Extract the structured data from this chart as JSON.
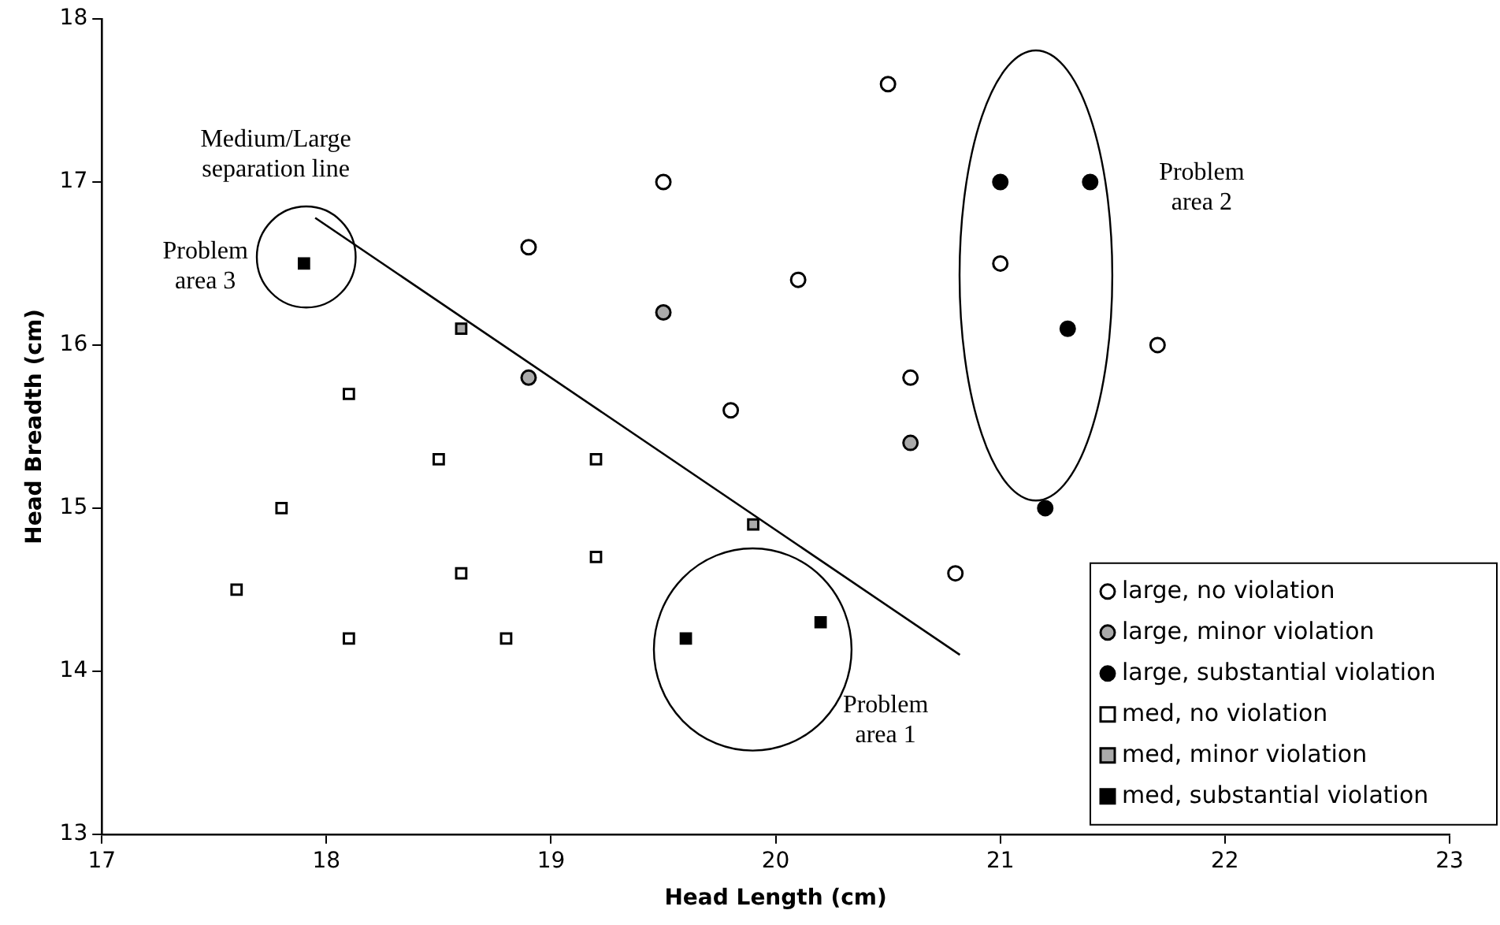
{
  "chart_data": {
    "type": "scatter",
    "xlabel": "Head Length (cm)",
    "ylabel": "Head Breadth (cm)",
    "xlim": [
      17,
      23
    ],
    "xticks": [
      17,
      18,
      19,
      20,
      21,
      22,
      23
    ],
    "ylim": [
      13,
      18
    ],
    "yticks": [
      13,
      14,
      15,
      16,
      17,
      18
    ],
    "grid": false,
    "legend": "bottom right",
    "series": [
      {
        "name": "large, no violation",
        "marker": "circle",
        "color": "#ffffff",
        "x": [
          18.9,
          19.5,
          20.5,
          20.1,
          19.8,
          20.6,
          21.0,
          21.7,
          20.8
        ],
        "values": [
          16.6,
          17.0,
          17.6,
          16.4,
          15.6,
          15.8,
          16.5,
          16.0,
          14.6
        ]
      },
      {
        "name": "large, minor violation",
        "marker": "circle",
        "color": "#aaaaaa",
        "x": [
          18.9,
          19.5,
          20.6
        ],
        "values": [
          15.8,
          16.2,
          15.4
        ]
      },
      {
        "name": "large, substantial violation",
        "marker": "circle",
        "color": "#000000",
        "x": [
          21.0,
          21.4,
          21.3,
          21.2
        ],
        "values": [
          17.0,
          17.0,
          16.1,
          15.0
        ]
      },
      {
        "name": "med, no violation",
        "marker": "square",
        "color": "#ffffff",
        "x": [
          18.1,
          18.5,
          19.2,
          17.8,
          17.6,
          18.6,
          19.2,
          18.1,
          18.8
        ],
        "values": [
          15.7,
          15.3,
          15.3,
          15.0,
          14.5,
          14.6,
          14.7,
          14.2,
          14.2
        ]
      },
      {
        "name": "med, minor violation",
        "marker": "square",
        "color": "#aaaaaa",
        "x": [
          18.6,
          19.9
        ],
        "values": [
          16.1,
          14.9
        ]
      },
      {
        "name": "med, substantial violation",
        "marker": "square",
        "color": "#000000",
        "x": [
          17.9,
          19.6,
          20.2
        ],
        "values": [
          16.5,
          14.2,
          14.3
        ]
      },
      {
        "name": "Medium/Large separation line",
        "type": "line",
        "marker": "none",
        "color": "#000000",
        "x": [
          17.95,
          20.82
        ],
        "values": [
          16.78,
          14.1
        ]
      }
    ],
    "annotations": [
      "Problem\narea 1",
      "Problem\narea 2",
      "Problem\narea 3"
    ]
  }
}
